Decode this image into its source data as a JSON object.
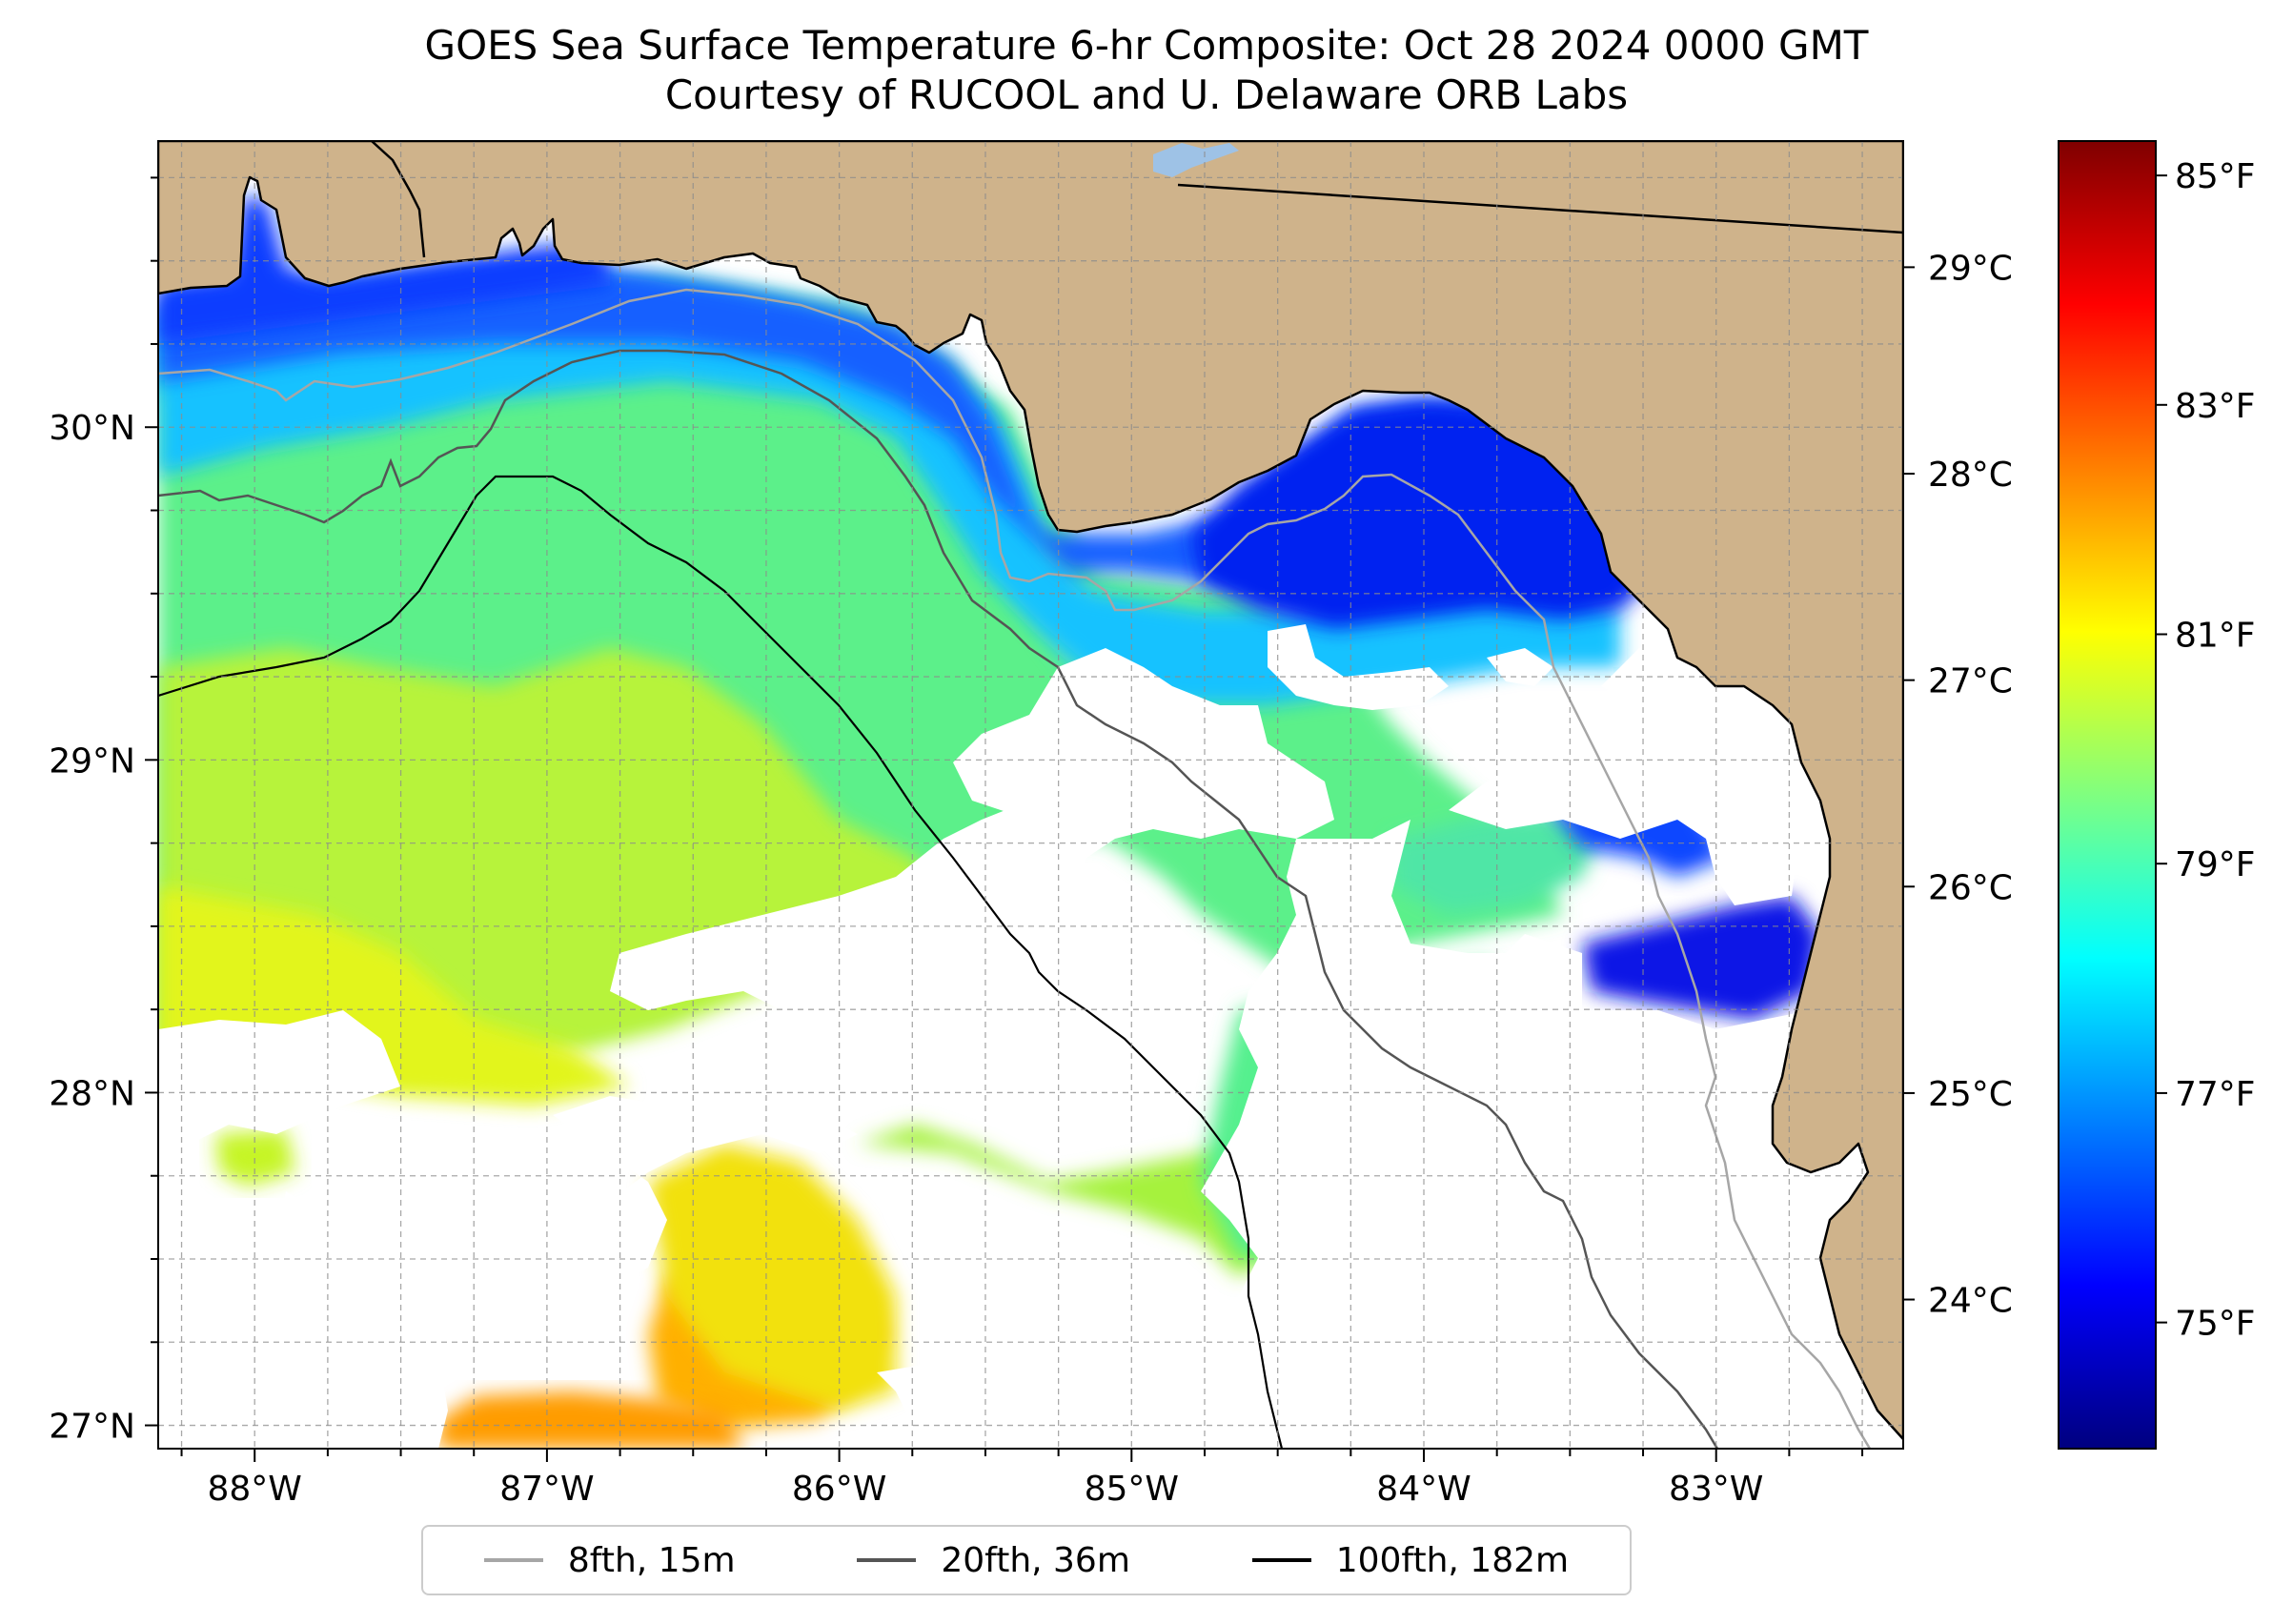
{
  "title": {
    "line1": "GOES Sea Surface Temperature 6-hr Composite: Oct 28 2024 0000 GMT",
    "line2": "Courtesy of RUCOOL and U. Delaware ORB Labs"
  },
  "map": {
    "lon_range": [
      -88.33,
      -82.36
    ],
    "lat_range": [
      26.93,
      30.86
    ],
    "lon_ticks": [
      {
        "value": -88,
        "label": "88°W"
      },
      {
        "value": -87,
        "label": "87°W"
      },
      {
        "value": -86,
        "label": "86°W"
      },
      {
        "value": -85,
        "label": "85°W"
      },
      {
        "value": -84,
        "label": "84°W"
      },
      {
        "value": -83,
        "label": "83°W"
      }
    ],
    "lat_ticks": [
      {
        "value": 27,
        "label": "27°N"
      },
      {
        "value": 28,
        "label": "28°N"
      },
      {
        "value": 29,
        "label": "29°N"
      },
      {
        "value": 30,
        "label": "30°N"
      }
    ],
    "gridlines": true,
    "land_color": "#cfb38b",
    "no_data_color": "#ffffff"
  },
  "colorbar": {
    "colormap": "jet",
    "range_f": [
      73.9,
      85.3
    ],
    "fahrenheit_ticks": [
      {
        "value": 75,
        "label": "75°F"
      },
      {
        "value": 77,
        "label": "77°F"
      },
      {
        "value": 79,
        "label": "79°F"
      },
      {
        "value": 81,
        "label": "81°F"
      },
      {
        "value": 83,
        "label": "83°F"
      },
      {
        "value": 85,
        "label": "85°F"
      }
    ],
    "celsius_ticks": [
      {
        "value": 24,
        "label": "24°C"
      },
      {
        "value": 25,
        "label": "25°C"
      },
      {
        "value": 26,
        "label": "26°C"
      },
      {
        "value": 27,
        "label": "27°C"
      },
      {
        "value": 28,
        "label": "28°C"
      },
      {
        "value": 29,
        "label": "29°C"
      }
    ]
  },
  "legend": {
    "placement": "bottom-center",
    "items": [
      {
        "label": "8fth, 15m",
        "color": "#a6a6a6"
      },
      {
        "label": "20fth, 36m",
        "color": "#555555"
      },
      {
        "label": "100fth, 182m",
        "color": "#000000"
      }
    ]
  }
}
